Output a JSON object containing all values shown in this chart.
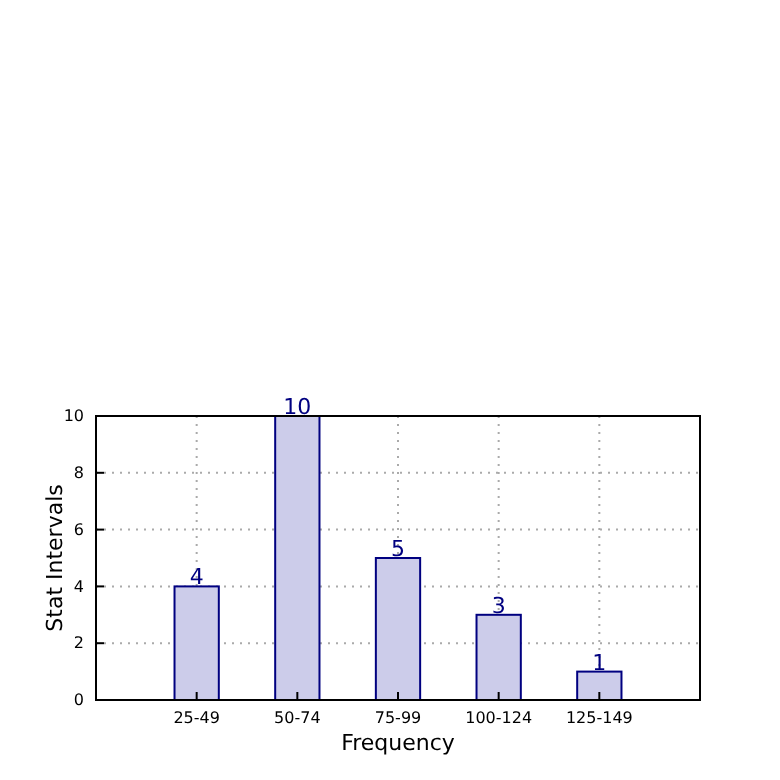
{
  "chart_data": {
    "type": "bar",
    "categories": [
      "25-49",
      "50-74",
      "75-99",
      "100-124",
      "125-149"
    ],
    "values": [
      4,
      10,
      5,
      3,
      1
    ],
    "color": "#ccccea",
    "xlabel": "Frequency",
    "ylabel": "Stat Intervals",
    "ylim": [
      0,
      10
    ],
    "yticks": [
      0,
      2,
      4,
      6,
      8,
      10
    ],
    "grid": true,
    "data_labels": true
  }
}
